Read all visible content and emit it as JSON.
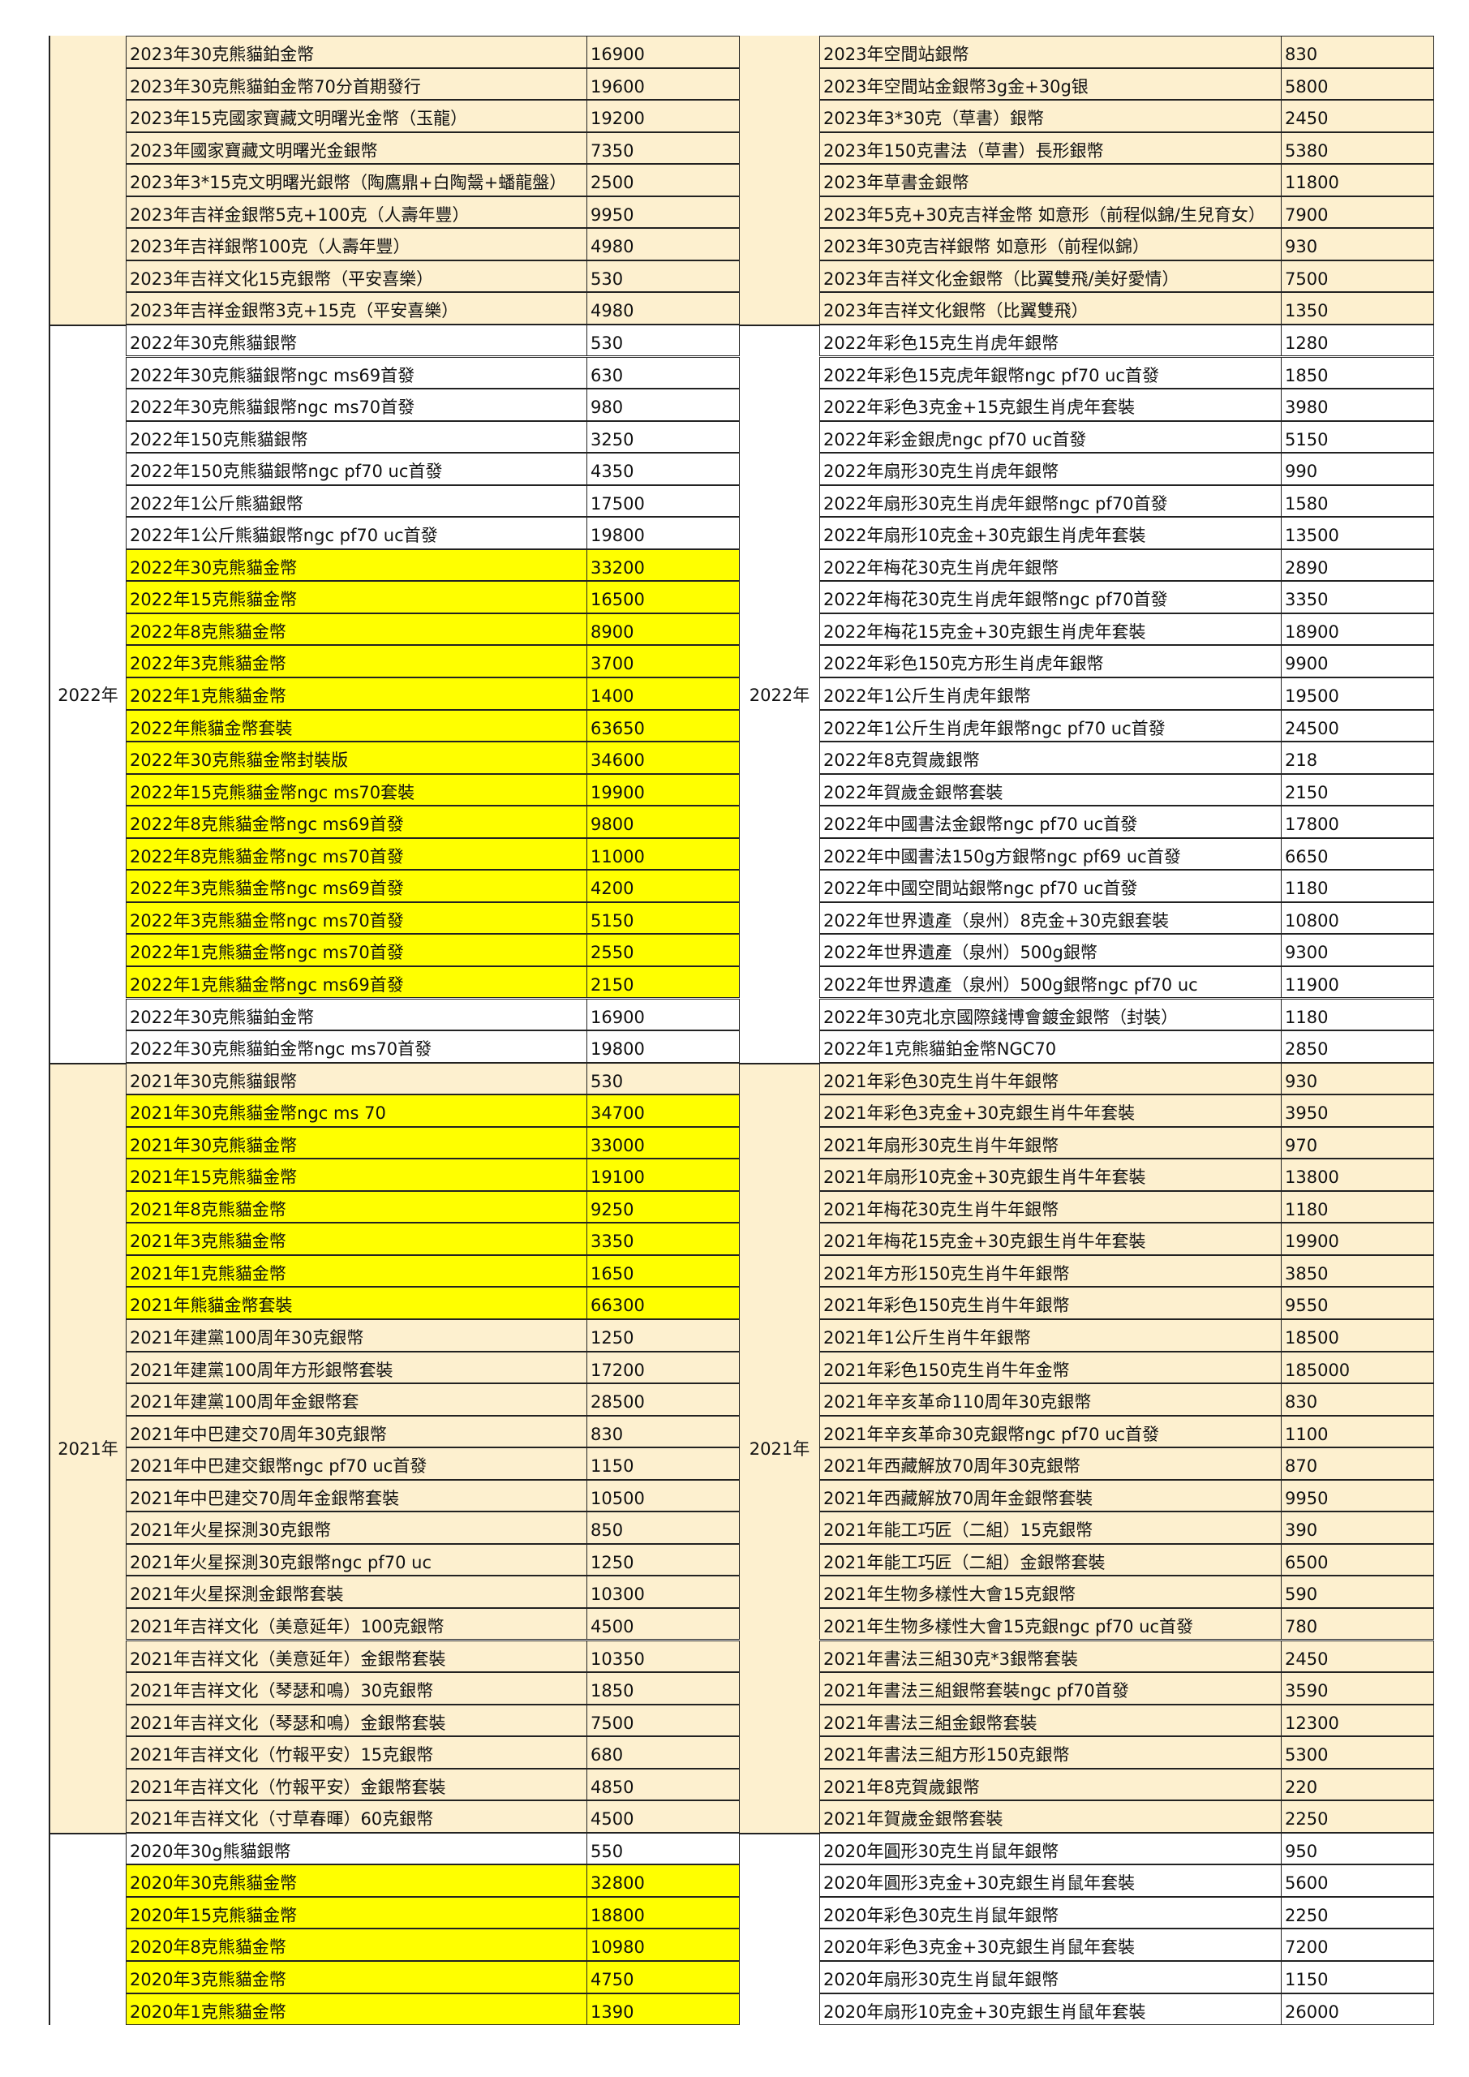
{
  "colors": {
    "section_tint": "#fdf0cf",
    "highlight": "#ffff00",
    "border": "#222222"
  },
  "sections": [
    {
      "year_label": "",
      "tint": "beige",
      "left": [
        {
          "name": "2023年30克熊貓鉑金幣",
          "price": "16900"
        },
        {
          "name": "2023年30克熊貓鉑金幣70分首期發行",
          "price": "19600"
        },
        {
          "name": "2023年15克國家寶藏文明曙光金幣（玉龍）",
          "price": "19200"
        },
        {
          "name": "2023年國家寶藏文明曙光金銀幣",
          "price": "7350"
        },
        {
          "name": "2023年3*15克文明曙光銀幣（陶鷹鼎+白陶鬶+蟠龍盤）",
          "price": "2500"
        },
        {
          "name": "2023年吉祥金銀幣5克+100克（人壽年豐）",
          "price": "9950"
        },
        {
          "name": "2023年吉祥銀幣100克（人壽年豐）",
          "price": "4980"
        },
        {
          "name": "2023年吉祥文化15克銀幣（平安喜樂）",
          "price": "530"
        },
        {
          "name": "2023年吉祥金銀幣3克+15克（平安喜樂）",
          "price": "4980"
        }
      ],
      "right": [
        {
          "name": "2023年空間站銀幣",
          "price": "830"
        },
        {
          "name": "2023年空間站金銀幣3g金+30g银",
          "price": "5800"
        },
        {
          "name": "2023年3*30克（草書）銀幣",
          "price": "2450"
        },
        {
          "name": "2023年150克書法（草書）長形銀幣",
          "price": "5380"
        },
        {
          "name": "2023年草書金銀幣",
          "price": "11800"
        },
        {
          "name": "2023年5克+30克吉祥金幣 如意形（前程似錦/生兒育女）",
          "price": "7900"
        },
        {
          "name": "2023年30克吉祥銀幣 如意形（前程似錦）",
          "price": "930"
        },
        {
          "name": "2023年吉祥文化金銀幣（比翼雙飛/美好愛情）",
          "price": "7500"
        },
        {
          "name": "2023年吉祥文化銀幣（比翼雙飛）",
          "price": "1350"
        }
      ]
    },
    {
      "year_label": "2022年",
      "tint": "white",
      "left": [
        {
          "name": "2022年30克熊貓銀幣",
          "price": "530"
        },
        {
          "name": "2022年30克熊貓銀幣ngc ms69首發",
          "price": "630"
        },
        {
          "name": "2022年30克熊貓銀幣ngc ms70首發",
          "price": "980"
        },
        {
          "name": "2022年150克熊貓銀幣",
          "price": "3250"
        },
        {
          "name": "2022年150克熊貓銀幣ngc pf70 uc首發",
          "price": "4350"
        },
        {
          "name": "2022年1公斤熊貓銀幣",
          "price": "17500"
        },
        {
          "name": "2022年1公斤熊貓銀幣ngc pf70 uc首發",
          "price": "19800"
        },
        {
          "name": "2022年30克熊貓金幣",
          "price": "33200",
          "highlight": true
        },
        {
          "name": "2022年15克熊貓金幣",
          "price": "16500",
          "highlight": true
        },
        {
          "name": "2022年8克熊貓金幣",
          "price": "8900",
          "highlight": true
        },
        {
          "name": "2022年3克熊貓金幣",
          "price": "3700",
          "highlight": true
        },
        {
          "name": "2022年1克熊貓金幣",
          "price": "1400",
          "highlight": true
        },
        {
          "name": "2022年熊貓金幣套裝",
          "price": "63650",
          "highlight": true
        },
        {
          "name": "2022年30克熊貓金幣封裝版",
          "price": "34600",
          "highlight": true
        },
        {
          "name": "2022年15克熊貓金幣ngc ms70套裝",
          "price": "19900",
          "highlight": true
        },
        {
          "name": "2022年8克熊貓金幣ngc ms69首發",
          "price": "9800",
          "highlight": true
        },
        {
          "name": "2022年8克熊貓金幣ngc ms70首發",
          "price": "11000",
          "highlight": true
        },
        {
          "name": "2022年3克熊貓金幣ngc ms69首發",
          "price": "4200",
          "highlight": true
        },
        {
          "name": "2022年3克熊貓金幣ngc ms70首發",
          "price": "5150",
          "highlight": true
        },
        {
          "name": "2022年1克熊貓金幣ngc ms70首發",
          "price": "2550",
          "highlight": true
        },
        {
          "name": "2022年1克熊貓金幣ngc ms69首發",
          "price": "2150",
          "highlight": true
        },
        {
          "name": "2022年30克熊貓鉑金幣",
          "price": "16900"
        },
        {
          "name": "2022年30克熊貓鉑金幣ngc ms70首發",
          "price": "19800"
        }
      ],
      "right": [
        {
          "name": "2022年彩色15克生肖虎年銀幣",
          "price": "1280"
        },
        {
          "name": "2022年彩色15克虎年銀幣ngc pf70 uc首發",
          "price": "1850"
        },
        {
          "name": "2022年彩色3克金+15克銀生肖虎年套裝",
          "price": "3980"
        },
        {
          "name": "2022年彩金銀虎ngc pf70 uc首發",
          "price": "5150"
        },
        {
          "name": "2022年扇形30克生肖虎年銀幣",
          "price": "990"
        },
        {
          "name": "2022年扇形30克生肖虎年銀幣ngc pf70首發",
          "price": "1580"
        },
        {
          "name": "2022年扇形10克金+30克銀生肖虎年套裝",
          "price": "13500"
        },
        {
          "name": "2022年梅花30克生肖虎年銀幣",
          "price": "2890"
        },
        {
          "name": "2022年梅花30克生肖虎年銀幣ngc pf70首發",
          "price": "3350"
        },
        {
          "name": "2022年梅花15克金+30克銀生肖虎年套裝",
          "price": "18900"
        },
        {
          "name": "2022年彩色150克方形生肖虎年銀幣",
          "price": "9900"
        },
        {
          "name": "2022年1公斤生肖虎年銀幣",
          "price": "19500"
        },
        {
          "name": "2022年1公斤生肖虎年銀幣ngc pf70 uc首發",
          "price": "24500"
        },
        {
          "name": "2022年8克賀歲銀幣",
          "price": "218"
        },
        {
          "name": "2022年賀歲金銀幣套裝",
          "price": "2150"
        },
        {
          "name": "2022年中國書法金銀幣ngc pf70 uc首發",
          "price": "17800"
        },
        {
          "name": "2022年中國書法150g方銀幣ngc pf69 uc首發",
          "price": "6650"
        },
        {
          "name": "2022年中國空間站銀幣ngc pf70 uc首發",
          "price": "1180"
        },
        {
          "name": "2022年世界遺產（泉州）8克金+30克銀套裝",
          "price": "10800"
        },
        {
          "name": "2022年世界遺產（泉州）500g銀幣",
          "price": "9300"
        },
        {
          "name": "2022年世界遺產（泉州）500g銀幣ngc pf70 uc",
          "price": "11900"
        },
        {
          "name": "2022年30克北京國際錢博會鍍金銀幣（封裝）",
          "price": "1180"
        },
        {
          "name": "2022年1克熊貓鉑金幣NGC70",
          "price": "2850"
        }
      ]
    },
    {
      "year_label": "2021年",
      "tint": "beige",
      "left": [
        {
          "name": "2021年30克熊貓銀幣",
          "price": "530"
        },
        {
          "name": "2021年30克熊貓金幣ngc ms 70",
          "price": "34700",
          "highlight": true
        },
        {
          "name": "2021年30克熊貓金幣",
          "price": "33000",
          "highlight": true
        },
        {
          "name": "2021年15克熊貓金幣",
          "price": "19100",
          "highlight": true
        },
        {
          "name": "2021年8克熊貓金幣",
          "price": "9250",
          "highlight": true
        },
        {
          "name": "2021年3克熊貓金幣",
          "price": "3350",
          "highlight": true
        },
        {
          "name": "2021年1克熊貓金幣",
          "price": "1650",
          "highlight": true
        },
        {
          "name": "2021年熊貓金幣套裝",
          "price": "66300",
          "highlight": true
        },
        {
          "name": "2021年建黨100周年30克銀幣",
          "price": "1250"
        },
        {
          "name": "2021年建黨100周年方形銀幣套裝",
          "price": "17200"
        },
        {
          "name": "2021年建黨100周年金銀幣套",
          "price": "28500"
        },
        {
          "name": "2021年中巴建交70周年30克銀幣",
          "price": "830"
        },
        {
          "name": "2021年中巴建交銀幣ngc pf70 uc首發",
          "price": "1150"
        },
        {
          "name": "2021年中巴建交70周年金銀幣套裝",
          "price": "10500"
        },
        {
          "name": "2021年火星探測30克銀幣",
          "price": "850"
        },
        {
          "name": "2021年火星探測30克銀幣ngc pf70 uc",
          "price": "1250"
        },
        {
          "name": "2021年火星探測金銀幣套裝",
          "price": "10300"
        },
        {
          "name": "2021年吉祥文化（美意延年）100克銀幣",
          "price": "4500"
        },
        {
          "name": "2021年吉祥文化（美意延年）金銀幣套裝",
          "price": "10350"
        },
        {
          "name": "2021年吉祥文化（琴瑟和鳴）30克銀幣",
          "price": "1850"
        },
        {
          "name": "2021年吉祥文化（琴瑟和鳴）金銀幣套裝",
          "price": "7500"
        },
        {
          "name": "2021年吉祥文化（竹報平安）15克銀幣",
          "price": "680"
        },
        {
          "name": "2021年吉祥文化（竹報平安）金銀幣套裝",
          "price": "4850"
        },
        {
          "name": "2021年吉祥文化（寸草春暉）60克銀幣",
          "price": "4500"
        }
      ],
      "right": [
        {
          "name": "2021年彩色30克生肖牛年銀幣",
          "price": "930"
        },
        {
          "name": "2021年彩色3克金+30克銀生肖牛年套裝",
          "price": "3950"
        },
        {
          "name": "2021年扇形30克生肖牛年銀幣",
          "price": "970"
        },
        {
          "name": "2021年扇形10克金+30克銀生肖牛年套裝",
          "price": "13800"
        },
        {
          "name": "2021年梅花30克生肖牛年銀幣",
          "price": "1180"
        },
        {
          "name": "2021年梅花15克金+30克銀生肖牛年套裝",
          "price": "19900"
        },
        {
          "name": "2021年方形150克生肖牛年銀幣",
          "price": "3850"
        },
        {
          "name": "2021年彩色150克生肖牛年銀幣",
          "price": "9550"
        },
        {
          "name": "2021年1公斤生肖牛年銀幣",
          "price": "18500"
        },
        {
          "name": "2021年彩色150克生肖牛年金幣",
          "price": "185000"
        },
        {
          "name": "2021年辛亥革命110周年30克銀幣",
          "price": "830"
        },
        {
          "name": "2021年辛亥革命30克銀幣ngc pf70 uc首發",
          "price": "1100"
        },
        {
          "name": "2021年西藏解放70周年30克銀幣",
          "price": "870"
        },
        {
          "name": "2021年西藏解放70周年金銀幣套裝",
          "price": "9950"
        },
        {
          "name": "2021年能工巧匠（二組）15克銀幣",
          "price": "390"
        },
        {
          "name": "2021年能工巧匠（二組）金銀幣套裝",
          "price": "6500"
        },
        {
          "name": "2021年生物多樣性大會15克銀幣",
          "price": "590"
        },
        {
          "name": "2021年生物多樣性大會15克銀ngc pf70 uc首發",
          "price": "780"
        },
        {
          "name": "2021年書法三組30克*3銀幣套裝",
          "price": "2450"
        },
        {
          "name": "2021年書法三組銀幣套裝ngc pf70首發",
          "price": "3590"
        },
        {
          "name": "2021年書法三組金銀幣套裝",
          "price": "12300"
        },
        {
          "name": "2021年書法三組方形150克銀幣",
          "price": "5300"
        },
        {
          "name": "2021年8克賀歲銀幣",
          "price": "220"
        },
        {
          "name": "2021年賀歲金銀幣套裝",
          "price": "2250"
        }
      ]
    },
    {
      "year_label": "",
      "tint": "white",
      "left": [
        {
          "name": "2020年30g熊貓銀幣",
          "price": "550"
        },
        {
          "name": "2020年30克熊貓金幣",
          "price": "32800",
          "highlight": true
        },
        {
          "name": "2020年15克熊貓金幣",
          "price": "18800",
          "highlight": true
        },
        {
          "name": "2020年8克熊貓金幣",
          "price": "10980",
          "highlight": true
        },
        {
          "name": "2020年3克熊貓金幣",
          "price": "4750",
          "highlight": true
        },
        {
          "name": "2020年1克熊貓金幣",
          "price": "1390",
          "highlight": true
        }
      ],
      "right": [
        {
          "name": "2020年圓形30克生肖鼠年銀幣",
          "price": "950"
        },
        {
          "name": "2020年圓形3克金+30克銀生肖鼠年套裝",
          "price": "5600"
        },
        {
          "name": "2020年彩色30克生肖鼠年銀幣",
          "price": "2250"
        },
        {
          "name": "2020年彩色3克金+30克銀生肖鼠年套裝",
          "price": "7200"
        },
        {
          "name": "2020年扇形30克生肖鼠年銀幣",
          "price": "1150"
        },
        {
          "name": "2020年扇形10克金+30克銀生肖鼠年套裝",
          "price": "26000"
        }
      ]
    }
  ]
}
